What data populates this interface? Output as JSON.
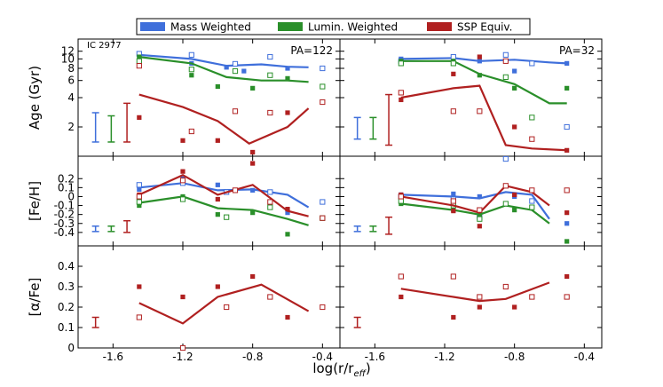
{
  "legend": {
    "entries": [
      {
        "label": "Mass Weighted",
        "color": "#3f6fdb"
      },
      {
        "label": "Lumin. Weighted",
        "color": "#2a8f2a"
      },
      {
        "label": "SSP Equiv.",
        "color": "#b02020"
      }
    ]
  },
  "xlabel": "log(r/r_eff)",
  "galaxy_label": "IC 2977",
  "colors": {
    "mass": "#3f6fdb",
    "lumin": "#2a8f2a",
    "ssp": "#b02020"
  },
  "chart_data": [
    {
      "id": "age-left",
      "type": "line",
      "panel_label": "PA=122",
      "ylabel": "Age (Gyr)",
      "ylog": true,
      "xlim": [
        -1.8,
        -0.3
      ],
      "ylim": [
        1,
        16
      ],
      "yticks": [
        2,
        4,
        6,
        8,
        10,
        12
      ],
      "xticks": [
        -1.6,
        -1.2,
        -0.8,
        -0.4
      ],
      "xtick_labels": [
        "-1.6",
        "-1.2",
        "-0.8",
        "-0.4"
      ],
      "errorbars": [
        {
          "series": "mass",
          "x": -1.7,
          "low": 1.4,
          "high": 2.8
        },
        {
          "series": "lumin",
          "x": -1.61,
          "low": 1.4,
          "high": 2.6
        },
        {
          "series": "ssp",
          "x": -1.52,
          "low": 1.4,
          "high": 3.5
        }
      ],
      "series": [
        {
          "name": "mass",
          "line_x": [
            -1.45,
            -1.15,
            -0.95,
            -0.75,
            -0.6,
            -0.48
          ],
          "line_y": [
            11.0,
            10.0,
            8.5,
            8.8,
            8.3,
            8.2
          ],
          "filled_x": [
            -1.45,
            -1.15,
            -0.95,
            -0.85,
            -0.6
          ],
          "filled_y": [
            11.0,
            9.0,
            8.2,
            7.5,
            8.0
          ],
          "open_x": [
            -1.45,
            -1.15,
            -0.9,
            -0.7,
            -0.4
          ],
          "open_y": [
            11.3,
            11.0,
            8.9,
            10.5,
            8.0
          ]
        },
        {
          "name": "lumin",
          "line_x": [
            -1.45,
            -1.15,
            -0.95,
            -0.75,
            -0.6,
            -0.48
          ],
          "line_y": [
            10.5,
            9.0,
            6.5,
            6.0,
            6.0,
            5.8
          ],
          "filled_x": [
            -1.45,
            -1.15,
            -1.0,
            -0.8,
            -0.6
          ],
          "filled_y": [
            10.5,
            6.8,
            5.2,
            5.0,
            6.3
          ],
          "open_x": [
            -1.45,
            -1.15,
            -0.9,
            -0.7,
            -0.4
          ],
          "open_y": [
            9.5,
            7.8,
            7.5,
            6.8,
            5.2
          ]
        },
        {
          "name": "ssp",
          "line_x": [
            -1.45,
            -1.2,
            -1.0,
            -0.82,
            -0.6,
            -0.48
          ],
          "line_y": [
            4.3,
            3.2,
            2.3,
            1.35,
            2.0,
            3.1
          ],
          "filled_x": [
            -1.45,
            -1.2,
            -1.0,
            -0.8,
            -0.6
          ],
          "filled_y": [
            2.5,
            1.45,
            1.45,
            1.1,
            2.8
          ],
          "open_x": [
            -1.45,
            -1.15,
            -0.9,
            -0.7,
            -0.4
          ],
          "open_y": [
            8.5,
            1.8,
            2.9,
            2.8,
            3.6
          ]
        }
      ]
    },
    {
      "id": "age-right",
      "type": "line",
      "panel_label": "PA=32",
      "ylabel": "",
      "ylog": true,
      "xlim": [
        -1.8,
        -0.3
      ],
      "ylim": [
        1,
        16
      ],
      "yticks": [
        2,
        4,
        6,
        8,
        10,
        12
      ],
      "xticks": [
        -1.6,
        -1.2,
        -0.8,
        -0.4
      ],
      "xtick_labels": [
        "-1.6",
        "-1.2",
        "-0.8",
        "-0.4"
      ],
      "errorbars": [
        {
          "series": "mass",
          "x": -1.7,
          "low": 1.5,
          "high": 2.5
        },
        {
          "series": "lumin",
          "x": -1.61,
          "low": 1.5,
          "high": 2.5
        },
        {
          "series": "ssp",
          "x": -1.52,
          "low": 1.3,
          "high": 4.3
        }
      ],
      "series": [
        {
          "name": "mass",
          "line_x": [
            -1.45,
            -1.15,
            -1.0,
            -0.8,
            -0.6,
            -0.5
          ],
          "line_y": [
            10.0,
            10.2,
            9.5,
            9.8,
            9.2,
            9.0
          ],
          "filled_x": [
            -1.45,
            -1.15,
            -1.0,
            -0.8,
            -0.5
          ],
          "filled_y": [
            10.0,
            10.2,
            9.5,
            7.5,
            9.0
          ],
          "open_x": [
            -1.45,
            -1.15,
            -0.85,
            -0.7,
            -0.5
          ],
          "open_y": [
            9.5,
            10.5,
            11.0,
            9.0,
            2.0
          ]
        },
        {
          "name": "lumin",
          "line_x": [
            -1.45,
            -1.15,
            -1.0,
            -0.8,
            -0.6,
            -0.5
          ],
          "line_y": [
            9.5,
            9.5,
            7.0,
            5.5,
            3.5,
            3.5
          ],
          "filled_x": [
            -1.45,
            -1.15,
            -1.0,
            -0.8,
            -0.5
          ],
          "filled_y": [
            9.5,
            9.5,
            6.8,
            5.0,
            5.0
          ],
          "open_x": [
            -1.45,
            -1.15,
            -0.85,
            -0.7
          ],
          "open_y": [
            9.0,
            9.0,
            6.5,
            2.5
          ]
        },
        {
          "name": "ssp",
          "line_x": [
            -1.45,
            -1.15,
            -1.0,
            -0.85,
            -0.7,
            -0.5
          ],
          "line_y": [
            4.0,
            5.0,
            5.3,
            1.3,
            1.2,
            1.15
          ],
          "filled_x": [
            -1.45,
            -1.15,
            -1.0,
            -0.8,
            -0.5
          ],
          "filled_y": [
            3.8,
            7.0,
            10.5,
            2.0,
            1.15
          ],
          "open_x": [
            -1.45,
            -1.15,
            -1.0,
            -0.85,
            -0.7
          ],
          "open_y": [
            4.5,
            2.9,
            2.9,
            9.5,
            1.5
          ]
        }
      ]
    },
    {
      "id": "feh-left",
      "type": "line",
      "panel_label": "",
      "ylabel": "[Fe/H]",
      "ylog": false,
      "xlim": [
        -1.8,
        -0.3
      ],
      "ylim": [
        -0.55,
        0.45
      ],
      "yticks": [
        0.2,
        0.1,
        0,
        -0.1,
        -0.2,
        -0.3,
        -0.4
      ],
      "ytick_labels": [
        "0.2",
        "0.1",
        "0",
        "-0.1",
        "-0.2",
        "-0.3",
        "-0.4"
      ],
      "xticks": [
        -1.6,
        -1.2,
        -0.8,
        -0.4
      ],
      "xtick_labels": [
        "-1.6",
        "-1.2",
        "-0.8",
        "-0.4"
      ],
      "errorbars": [
        {
          "series": "mass",
          "x": -1.7,
          "low": -0.39,
          "high": -0.33
        },
        {
          "series": "lumin",
          "x": -1.61,
          "low": -0.39,
          "high": -0.33
        },
        {
          "series": "ssp",
          "x": -1.52,
          "low": -0.4,
          "high": -0.27
        }
      ],
      "series": [
        {
          "name": "mass",
          "line_x": [
            -1.45,
            -1.2,
            -1.0,
            -0.8,
            -0.6,
            -0.48
          ],
          "line_y": [
            0.1,
            0.15,
            0.07,
            0.08,
            0.02,
            -0.12
          ],
          "filled_x": [
            -1.45,
            -1.2,
            -1.0,
            -0.8,
            -0.6
          ],
          "filled_y": [
            0.08,
            0.2,
            0.13,
            0.07,
            -0.18
          ],
          "open_x": [
            -1.45,
            -1.2,
            -0.95,
            -0.7,
            -0.4
          ],
          "open_y": [
            0.13,
            0.15,
            0.05,
            0.05,
            -0.06
          ]
        },
        {
          "name": "lumin",
          "line_x": [
            -1.45,
            -1.2,
            -1.0,
            -0.8,
            -0.6,
            -0.48
          ],
          "line_y": [
            -0.07,
            0.0,
            -0.13,
            -0.15,
            -0.25,
            -0.32
          ],
          "filled_x": [
            -1.45,
            -1.2,
            -1.0,
            -0.8,
            -0.6
          ],
          "filled_y": [
            -0.1,
            -0.0,
            -0.2,
            -0.18,
            -0.42
          ],
          "open_x": [
            -1.45,
            -1.2,
            -0.95,
            -0.7,
            -0.4
          ],
          "open_y": [
            -0.06,
            -0.03,
            -0.23,
            -0.12,
            -0.24
          ]
        },
        {
          "name": "ssp",
          "line_x": [
            -1.45,
            -1.2,
            -1.0,
            -0.8,
            -0.6,
            -0.48
          ],
          "line_y": [
            0.02,
            0.24,
            0.02,
            0.13,
            -0.16,
            -0.22
          ],
          "filled_x": [
            -1.45,
            -1.2,
            -1.0,
            -0.8,
            -0.6
          ],
          "filled_y": [
            0.02,
            0.28,
            -0.03,
            0.37,
            -0.14
          ],
          "open_x": [
            -1.45,
            -1.2,
            -0.9,
            -0.7,
            -0.4
          ],
          "open_y": [
            0.0,
            0.18,
            0.07,
            -0.06,
            -0.24
          ]
        }
      ]
    },
    {
      "id": "feh-right",
      "type": "line",
      "panel_label": "",
      "ylabel": "",
      "ylog": false,
      "xlim": [
        -1.8,
        -0.3
      ],
      "ylim": [
        -0.55,
        0.45
      ],
      "yticks": [
        0.2,
        0.1,
        0,
        -0.1,
        -0.2,
        -0.3,
        -0.4
      ],
      "xticks": [
        -1.6,
        -1.2,
        -0.8,
        -0.4
      ],
      "xtick_labels": [
        "-1.6",
        "-1.2",
        "-0.8",
        "-0.4"
      ],
      "errorbars": [
        {
          "series": "mass",
          "x": -1.7,
          "low": -0.39,
          "high": -0.33
        },
        {
          "series": "lumin",
          "x": -1.61,
          "low": -0.39,
          "high": -0.33
        },
        {
          "series": "ssp",
          "x": -1.52,
          "low": -0.42,
          "high": -0.23
        }
      ],
      "series": [
        {
          "name": "mass",
          "line_x": [
            -1.45,
            -1.15,
            -1.0,
            -0.85,
            -0.7,
            -0.6
          ],
          "line_y": [
            0.02,
            0.0,
            -0.02,
            0.05,
            0.02,
            -0.25
          ],
          "filled_x": [
            -1.45,
            -1.15,
            -1.0,
            -0.8,
            -0.5
          ],
          "filled_y": [
            0.02,
            0.03,
            0.0,
            0.0,
            -0.3
          ],
          "open_x": [
            -1.45,
            -1.15,
            -1.0,
            -0.85,
            -0.7
          ],
          "open_y": [
            0.0,
            -0.03,
            -0.23,
            0.42,
            -0.05
          ]
        },
        {
          "name": "lumin",
          "line_x": [
            -1.45,
            -1.15,
            -1.0,
            -0.85,
            -0.7,
            -0.6
          ],
          "line_y": [
            -0.08,
            -0.15,
            -0.2,
            -0.1,
            -0.15,
            -0.3
          ],
          "filled_x": [
            -1.45,
            -1.15,
            -1.0,
            -0.8,
            -0.5
          ],
          "filled_y": [
            -0.08,
            -0.15,
            -0.2,
            -0.15,
            -0.5
          ],
          "open_x": [
            -1.45,
            -1.15,
            -1.0,
            -0.85,
            -0.7
          ],
          "open_y": [
            -0.05,
            -0.1,
            -0.25,
            -0.08,
            -0.12
          ]
        },
        {
          "name": "ssp",
          "line_x": [
            -1.45,
            -1.15,
            -1.0,
            -0.85,
            -0.7,
            -0.6
          ],
          "line_y": [
            0.0,
            -0.1,
            -0.18,
            0.12,
            0.05,
            -0.1
          ],
          "filled_x": [
            -1.45,
            -1.15,
            -1.0,
            -0.8,
            -0.5
          ],
          "filled_y": [
            0.02,
            -0.16,
            -0.33,
            0.02,
            -0.18
          ],
          "open_x": [
            -1.45,
            -1.15,
            -1.0,
            -0.85,
            -0.7,
            -0.5
          ],
          "open_y": [
            0.0,
            -0.05,
            -0.15,
            0.12,
            0.07,
            0.07
          ]
        }
      ]
    },
    {
      "id": "afe-left",
      "type": "line",
      "panel_label": "",
      "ylabel": "[α/Fe]",
      "ylog": false,
      "xlim": [
        -1.8,
        -0.3
      ],
      "ylim": [
        0,
        0.5
      ],
      "yticks": [
        0,
        0.1,
        0.2,
        0.3,
        0.4
      ],
      "ytick_labels": [
        "0",
        "0.1",
        "0.2",
        "0.3",
        "0.4"
      ],
      "xticks": [
        -1.6,
        -1.2,
        -0.8,
        -0.4
      ],
      "xtick_labels": [
        "-1.6",
        "-1.2",
        "-0.8",
        "-0.4"
      ],
      "errorbars": [
        {
          "series": "ssp",
          "x": -1.7,
          "low": 0.1,
          "high": 0.15
        }
      ],
      "series": [
        {
          "name": "ssp",
          "line_x": [
            -1.45,
            -1.2,
            -1.0,
            -0.75,
            -0.48
          ],
          "line_y": [
            0.22,
            0.12,
            0.25,
            0.31,
            0.18
          ],
          "filled_x": [
            -1.45,
            -1.2,
            -1.0,
            -0.8,
            -0.6
          ],
          "filled_y": [
            0.3,
            0.25,
            0.3,
            0.35,
            0.15
          ],
          "open_x": [
            -1.45,
            -1.2,
            -0.95,
            -0.7,
            -0.4
          ],
          "open_y": [
            0.15,
            0.0,
            0.2,
            0.25,
            0.2
          ]
        }
      ]
    },
    {
      "id": "afe-right",
      "type": "line",
      "panel_label": "",
      "ylabel": "",
      "ylog": false,
      "xlim": [
        -1.8,
        -0.3
      ],
      "ylim": [
        0,
        0.5
      ],
      "yticks": [
        0,
        0.1,
        0.2,
        0.3,
        0.4
      ],
      "xticks": [
        -1.6,
        -1.2,
        -0.8,
        -0.4
      ],
      "xtick_labels": [
        "-1.6",
        "-1.2",
        "-0.8",
        "-0.4"
      ],
      "errorbars": [
        {
          "series": "ssp",
          "x": -1.7,
          "low": 0.1,
          "high": 0.15
        }
      ],
      "series": [
        {
          "name": "ssp",
          "line_x": [
            -1.45,
            -1.15,
            -1.0,
            -0.85,
            -0.6
          ],
          "line_y": [
            0.29,
            0.25,
            0.23,
            0.24,
            0.32
          ],
          "filled_x": [
            -1.45,
            -1.15,
            -1.0,
            -0.8,
            -0.5
          ],
          "filled_y": [
            0.25,
            0.15,
            0.2,
            0.2,
            0.35
          ],
          "open_x": [
            -1.45,
            -1.15,
            -1.0,
            -0.85,
            -0.7,
            -0.5
          ],
          "open_y": [
            0.35,
            0.35,
            0.25,
            0.3,
            0.25,
            0.25
          ]
        }
      ]
    }
  ]
}
